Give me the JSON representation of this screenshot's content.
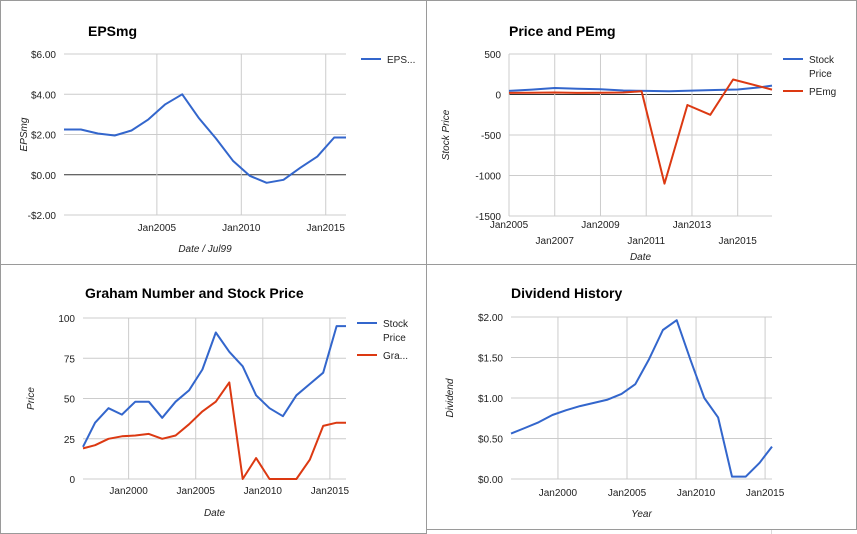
{
  "chart_data": [
    {
      "type": "line",
      "title": "EPSmg",
      "xlabel": "Date / Jul99",
      "ylabel": "EPSmg",
      "ylim": [
        -2,
        6
      ],
      "xlim": [
        1999.5,
        2016.2
      ],
      "yticks": [
        -2,
        0,
        2,
        4,
        6
      ],
      "ytick_labels": [
        "-$2.00",
        "$0.00",
        "$2.00",
        "$4.00",
        "$6.00"
      ],
      "xticks": [
        2005,
        2010,
        2015
      ],
      "xtick_labels": [
        "Jan2005",
        "Jan2010",
        "Jan2015"
      ],
      "zero_line": true,
      "series": [
        {
          "name": "EPS...",
          "color": "#3366cc",
          "x": [
            1999.5,
            2000.5,
            2001.5,
            2002.5,
            2003.5,
            2004.5,
            2005.5,
            2006.5,
            2007.5,
            2008.5,
            2009.5,
            2010.5,
            2011.5,
            2012.5,
            2013.5,
            2014.5,
            2015.5,
            2016.2
          ],
          "values": [
            2.25,
            2.25,
            2.05,
            1.95,
            2.2,
            2.75,
            3.5,
            4.0,
            2.8,
            1.8,
            0.7,
            -0.05,
            -0.4,
            -0.25,
            0.35,
            0.9,
            1.85,
            1.85
          ]
        }
      ]
    },
    {
      "type": "line",
      "title": "Price and PEmg",
      "xlabel": "Date",
      "ylabel": "Stock Price",
      "ylim": [
        -1500,
        500
      ],
      "xlim": [
        2005.0,
        2016.5
      ],
      "yticks": [
        -1500,
        -1000,
        -500,
        0,
        500
      ],
      "ytick_labels": [
        "-1500",
        "-1000",
        "-500",
        "0",
        "500"
      ],
      "xticks": [
        2005,
        2007,
        2009,
        2011,
        2013,
        2015
      ],
      "xtick_labels": [
        "Jan2005",
        "Jan2007",
        "Jan2009",
        "Jan2011",
        "Jan2013",
        "Jan2015"
      ],
      "zero_line": true,
      "series": [
        {
          "name": "Stock Price",
          "color": "#3366cc",
          "x": [
            2005.0,
            2006.0,
            2007.0,
            2008.0,
            2009.0,
            2010.0,
            2011.0,
            2012.0,
            2013.0,
            2014.0,
            2015.0,
            2016.0,
            2016.5
          ],
          "values": [
            45,
            60,
            80,
            72,
            65,
            50,
            45,
            40,
            48,
            55,
            62,
            90,
            110
          ]
        },
        {
          "name": "PEmg",
          "color": "#dc3912",
          "x": [
            2005.0,
            2006.0,
            2007.0,
            2008.0,
            2009.0,
            2010.0,
            2010.8,
            2011.8,
            2012.8,
            2013.8,
            2014.8,
            2016.5
          ],
          "values": [
            20,
            22,
            25,
            20,
            22,
            25,
            40,
            -1100,
            -130,
            -250,
            185,
            60
          ]
        }
      ]
    },
    {
      "type": "line",
      "title": "Graham Number and Stock Price",
      "xlabel": "Date",
      "ylabel": "Price",
      "ylim": [
        0,
        100
      ],
      "xlim": [
        1996.6,
        2016.2
      ],
      "yticks": [
        0,
        25,
        50,
        75,
        100
      ],
      "ytick_labels": [
        "0",
        "25",
        "50",
        "75",
        "100"
      ],
      "xticks": [
        2000,
        2005,
        2010,
        2015
      ],
      "xtick_labels": [
        "Jan2000",
        "Jan2005",
        "Jan2010",
        "Jan2015"
      ],
      "zero_line": false,
      "series": [
        {
          "name": "Stock Price",
          "color": "#3366cc",
          "x": [
            1996.6,
            1997.5,
            1998.5,
            1999.5,
            2000.5,
            2001.5,
            2002.5,
            2003.5,
            2004.5,
            2005.5,
            2006.5,
            2007.5,
            2008.5,
            2009.5,
            2010.5,
            2011.5,
            2012.5,
            2013.5,
            2014.5,
            2015.5,
            2016.2
          ],
          "values": [
            20,
            35,
            44,
            40,
            48,
            48,
            38,
            48,
            55,
            68,
            91,
            79,
            70,
            52,
            44,
            39,
            52,
            59,
            66,
            95,
            95
          ]
        },
        {
          "name": "Gra...",
          "color": "#dc3912",
          "x": [
            1996.6,
            1997.5,
            1998.5,
            1999.5,
            2000.5,
            2001.5,
            2002.5,
            2003.5,
            2004.5,
            2005.5,
            2006.5,
            2007.5,
            2008.5,
            2009.5,
            2010.5,
            2011.5,
            2012.5,
            2013.5,
            2014.5,
            2015.5,
            2016.2
          ],
          "values": [
            19,
            21,
            25,
            26.5,
            27,
            28,
            25,
            27,
            34,
            42,
            48,
            60,
            0,
            13,
            0,
            0,
            0,
            12,
            33,
            35,
            35
          ]
        }
      ]
    },
    {
      "type": "line",
      "title": "Dividend History",
      "xlabel": "Year",
      "ylabel": "Dividend",
      "ylim": [
        0,
        2
      ],
      "xlim": [
        1996.6,
        2015.5
      ],
      "yticks": [
        0,
        0.5,
        1,
        1.5,
        2
      ],
      "ytick_labels": [
        "$0.00",
        "$0.50",
        "$1.00",
        "$1.50",
        "$2.00"
      ],
      "xticks": [
        2000,
        2005,
        2010,
        2015
      ],
      "xtick_labels": [
        "Jan2000",
        "Jan2005",
        "Jan2010",
        "Jan2015"
      ],
      "zero_line": false,
      "series": [
        {
          "name": "",
          "color": "#3366cc",
          "x": [
            1996.6,
            1997.6,
            1998.6,
            1999.6,
            2000.6,
            2001.6,
            2002.6,
            2003.6,
            2004.6,
            2005.6,
            2006.6,
            2007.6,
            2008.6,
            2009.6,
            2010.6,
            2011.6,
            2012.6,
            2013.6,
            2014.6,
            2015.5
          ],
          "values": [
            0.56,
            0.63,
            0.7,
            0.79,
            0.85,
            0.9,
            0.94,
            0.98,
            1.05,
            1.17,
            1.48,
            1.84,
            1.96,
            1.47,
            1.0,
            0.76,
            0.03,
            0.03,
            0.2,
            0.4
          ]
        }
      ]
    }
  ]
}
